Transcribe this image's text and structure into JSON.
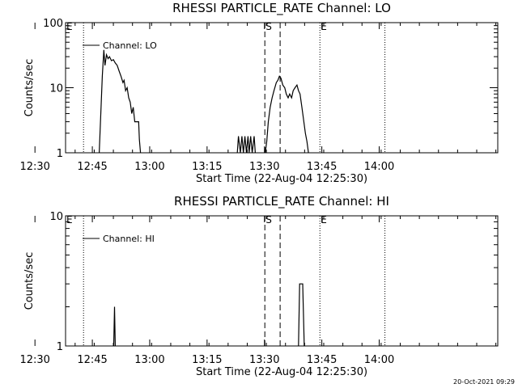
{
  "footer": {
    "timestamp": "20-Oct-2021 09:29"
  },
  "chart_data": [
    {
      "type": "line",
      "title": "RHESSI PARTICLE_RATE Channel: LO",
      "xlabel": "Start Time (22-Aug-04 12:25:30)",
      "ylabel": "Counts/sec",
      "yscale": "log",
      "ylim": [
        1,
        100
      ],
      "xlim_minutes": [
        12.5,
        125.5
      ],
      "xticks": [
        {
          "t": 4.5,
          "label": "12:30"
        },
        {
          "t": 19.5,
          "label": "12:45"
        },
        {
          "t": 34.5,
          "label": "13:00"
        },
        {
          "t": 49.5,
          "label": "13:15"
        },
        {
          "t": 64.5,
          "label": "13:30"
        },
        {
          "t": 79.5,
          "label": "13:45"
        },
        {
          "t": 94.5,
          "label": "14:00"
        }
      ],
      "yticks": [
        {
          "v": 1,
          "label": "1"
        },
        {
          "v": 10,
          "label": "10"
        },
        {
          "v": 100,
          "label": "100"
        }
      ],
      "legend": {
        "label": "Channel: LO",
        "position": "top-left"
      },
      "markers": [
        {
          "t": 17.2,
          "style": "dotted",
          "label": ""
        },
        {
          "t": 64.6,
          "style": "dashed",
          "label": "S"
        },
        {
          "t": 68.6,
          "style": "dashed",
          "label": ""
        },
        {
          "t": 79.0,
          "style": "dotted",
          "label": "E"
        },
        {
          "t": 96.0,
          "style": "dotted",
          "label": ""
        }
      ],
      "edge_label": "E",
      "series": [
        {
          "name": "Channel: LO",
          "segments": [
            [
              [
                21.3,
                1
              ],
              [
                22.1,
                15
              ],
              [
                22.5,
                38
              ],
              [
                22.8,
                22
              ],
              [
                23.2,
                32
              ],
              [
                23.6,
                28
              ],
              [
                24.0,
                30
              ],
              [
                24.5,
                26
              ],
              [
                25.0,
                27
              ],
              [
                25.5,
                24
              ],
              [
                26.0,
                22
              ],
              [
                26.5,
                18
              ],
              [
                27.0,
                15
              ],
              [
                27.5,
                12
              ],
              [
                27.8,
                13
              ],
              [
                28.2,
                9
              ],
              [
                28.6,
                10
              ],
              [
                29.0,
                7
              ],
              [
                29.4,
                6
              ],
              [
                29.8,
                4
              ],
              [
                30.2,
                5
              ],
              [
                30.6,
                3
              ],
              [
                31.0,
                3
              ],
              [
                31.6,
                3
              ],
              [
                31.8,
                1.6
              ],
              [
                32.1,
                1
              ]
            ],
            [
              [
                57.4,
                1
              ],
              [
                57.7,
                1.8
              ],
              [
                58.2,
                1
              ],
              [
                58.6,
                1.8
              ],
              [
                59.0,
                1
              ],
              [
                59.4,
                1.8
              ],
              [
                59.8,
                1
              ],
              [
                60.2,
                1.8
              ],
              [
                60.5,
                1
              ],
              [
                60.9,
                1.8
              ],
              [
                61.3,
                1
              ],
              [
                61.8,
                1.8
              ],
              [
                62.1,
                1
              ]
            ],
            [
              [
                64.7,
                1
              ],
              [
                65.1,
                1.5
              ],
              [
                65.5,
                3
              ],
              [
                66.0,
                5
              ],
              [
                66.5,
                7
              ],
              [
                67.0,
                9
              ],
              [
                67.6,
                12
              ],
              [
                68.0,
                13
              ],
              [
                68.4,
                15
              ],
              [
                68.8,
                14
              ],
              [
                69.3,
                11
              ],
              [
                69.8,
                10
              ],
              [
                70.2,
                8
              ],
              [
                70.7,
                7
              ],
              [
                71.1,
                8
              ],
              [
                71.6,
                7
              ],
              [
                72.0,
                9
              ],
              [
                72.5,
                10
              ],
              [
                73.0,
                11
              ],
              [
                73.4,
                9
              ],
              [
                73.8,
                8
              ],
              [
                74.3,
                5
              ],
              [
                74.8,
                3
              ],
              [
                75.2,
                2
              ],
              [
                75.6,
                1.5
              ],
              [
                76.0,
                1
              ]
            ]
          ]
        }
      ]
    },
    {
      "type": "line",
      "title": "RHESSI PARTICLE_RATE Channel: HI",
      "xlabel": "Start Time (22-Aug-04 12:25:30)",
      "ylabel": "Counts/sec",
      "yscale": "log",
      "ylim": [
        1,
        10
      ],
      "xlim_minutes": [
        12.5,
        125.5
      ],
      "xticks": [
        {
          "t": 4.5,
          "label": "12:30"
        },
        {
          "t": 19.5,
          "label": "12:45"
        },
        {
          "t": 34.5,
          "label": "13:00"
        },
        {
          "t": 49.5,
          "label": "13:15"
        },
        {
          "t": 64.5,
          "label": "13:30"
        },
        {
          "t": 79.5,
          "label": "13:45"
        },
        {
          "t": 94.5,
          "label": "14:00"
        }
      ],
      "yticks": [
        {
          "v": 1,
          "label": "1"
        },
        {
          "v": 10,
          "label": "10"
        }
      ],
      "legend": {
        "label": "Channel: HI",
        "position": "top-left"
      },
      "markers": [
        {
          "t": 17.2,
          "style": "dotted",
          "label": ""
        },
        {
          "t": 64.6,
          "style": "dashed",
          "label": "S"
        },
        {
          "t": 68.6,
          "style": "dashed",
          "label": ""
        },
        {
          "t": 79.0,
          "style": "dotted",
          "label": "E"
        },
        {
          "t": 96.0,
          "style": "dotted",
          "label": ""
        }
      ],
      "edge_label": "E",
      "series": [
        {
          "name": "Channel: HI",
          "segments": [
            [
              [
                25.1,
                1
              ],
              [
                25.3,
                2
              ],
              [
                25.5,
                1
              ]
            ],
            [
              [
                73.4,
                1
              ],
              [
                73.7,
                3
              ],
              [
                74.5,
                3
              ],
              [
                74.9,
                1
              ]
            ]
          ]
        }
      ]
    }
  ]
}
